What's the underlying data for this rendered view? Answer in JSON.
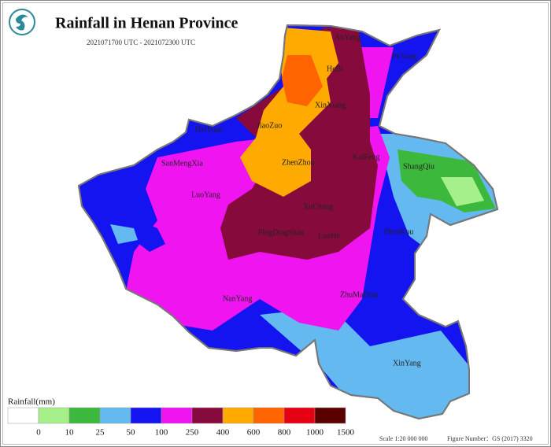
{
  "header": {
    "title": "Rainfall in Henan Province",
    "subtitle": "2021071700 UTC - 2021072300 UTC"
  },
  "cities": [
    "AnYang",
    "HeBi",
    "PuYang",
    "XinXiang",
    "JiaoZuo",
    "HeiYuan",
    "SanMengXia",
    "ZhenZhou",
    "KaiFeng",
    "ShangQiu",
    "LuoYang",
    "XuChang",
    "PingDingShan",
    "LuoHe",
    "ZhouKou",
    "NanYang",
    "ZhuMaDian",
    "XinYang"
  ],
  "legend": {
    "title": "Rainfall(mm)",
    "ticks": [
      0,
      10,
      25,
      50,
      100,
      250,
      400,
      600,
      800,
      1000,
      1500
    ],
    "colors": [
      "#ffffff",
      "#a6f08c",
      "#3cb93c",
      "#64b9f0",
      "#1414f0",
      "#f014f0",
      "#870a3c",
      "#ffaa00",
      "#ff6400",
      "#e60014",
      "#5a0000"
    ]
  },
  "footer": {
    "scale": "Scale 1:20 000 000",
    "figure_number": "Figure Number：GS (2017) 3320"
  }
}
